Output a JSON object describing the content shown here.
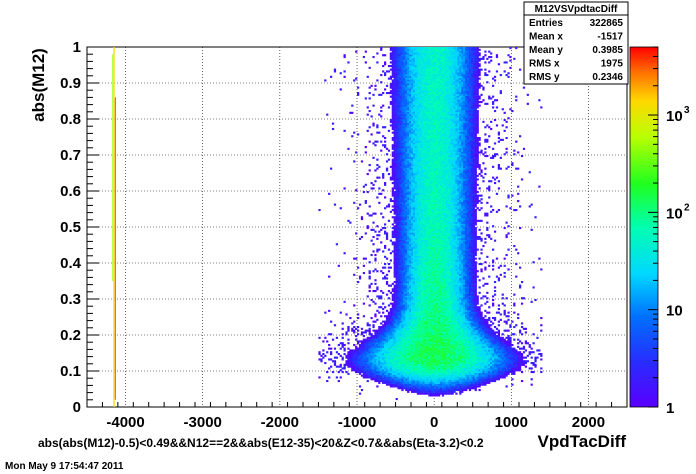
{
  "chart_data": {
    "type": "heatmap",
    "title": "",
    "xlabel": "VpdTacDiff",
    "ylabel": "abs(M12)",
    "xlim": [
      -4500,
      2500
    ],
    "ylim": [
      0,
      1
    ],
    "x_ticks": [
      -4000,
      -3000,
      -2000,
      -1000,
      0,
      1000,
      2000
    ],
    "x_tick_labels": [
      "-4000",
      "-3000",
      "-2000",
      "-1000",
      "0",
      "1000",
      "2000"
    ],
    "y_ticks": [
      0,
      0.1,
      0.2,
      0.3,
      0.4,
      0.5,
      0.6,
      0.7,
      0.8,
      0.9,
      1
    ],
    "y_tick_labels": [
      "0",
      "0.1",
      "0.2",
      "0.3",
      "0.4",
      "0.5",
      "0.6",
      "0.7",
      "0.8",
      "0.9",
      "1"
    ],
    "z_scale": "log",
    "z_range": [
      1,
      5000
    ],
    "colorbar_ticks": [
      {
        "value": 1,
        "base": "1",
        "exp": ""
      },
      {
        "value": 10,
        "base": "10",
        "exp": ""
      },
      {
        "value": 100,
        "base": "10",
        "exp": "2"
      },
      {
        "value": 1000,
        "base": "10",
        "exp": "3"
      }
    ],
    "grid": true,
    "stats_box": {
      "title": "M12VSVpdtacDiff",
      "rows": [
        {
          "label": "Entries",
          "value": "322865"
        },
        {
          "label": "Mean x",
          "value": "-1517"
        },
        {
          "label": "Mean y",
          "value": "0.3985"
        },
        {
          "label": "RMS x",
          "value": "1975"
        },
        {
          "label": "RMS y",
          "value": "0.2346"
        }
      ]
    },
    "cut_label": "abs(abs(M12)-0.5)<0.49&&N12==2&&abs(E12-35)<20&Z<0.7&&abs(Eta-3.2)<0.2",
    "main_cluster": {
      "x_center": 0,
      "y_peak": 0.14,
      "peak_count": 2500
    },
    "edge_line": {
      "x": -4150,
      "y_range": [
        0,
        1
      ]
    }
  },
  "timestamp": "Mon May  9 17:54:47 2011"
}
